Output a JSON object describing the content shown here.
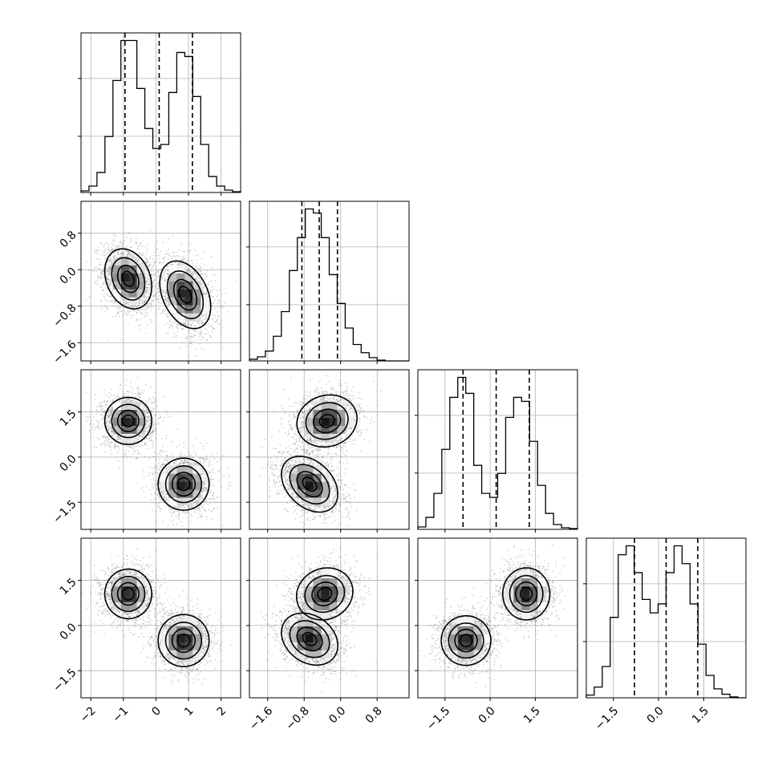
{
  "chart_data": {
    "type": "corner",
    "parameters": 4,
    "colors": {
      "line": "#000000",
      "points": "#808080",
      "grid": "#b0b0b0",
      "background": "#ffffff"
    },
    "grid": true,
    "axes": [
      {
        "range": [
          -2.3,
          2.6
        ],
        "ticks": [
          -2,
          -1,
          0,
          1,
          2
        ],
        "tick_labels": [
          "−2",
          "−1",
          "0",
          "1",
          "2"
        ]
      },
      {
        "range": [
          -2.0,
          1.5
        ],
        "ticks": [
          -1.6,
          -0.8,
          0.0,
          0.8
        ],
        "tick_labels": [
          "−1.6",
          "−0.8",
          "0.0",
          "0.8"
        ]
      },
      {
        "range": [
          -2.4,
          2.9
        ],
        "ticks": [
          -1.5,
          0.0,
          1.5
        ],
        "tick_labels": [
          "−1.5",
          "0.0",
          "1.5"
        ]
      },
      {
        "range": [
          -2.4,
          2.9
        ],
        "ticks": [
          -1.5,
          0.0,
          1.5
        ],
        "tick_labels": [
          "−1.5",
          "0.0",
          "1.5"
        ]
      }
    ],
    "histograms": [
      {
        "param": 0,
        "bin_edges": [
          -2.3,
          -2.055,
          -1.81,
          -1.565,
          -1.32,
          -1.075,
          -0.83,
          -0.585,
          -0.34,
          -0.095,
          0.15,
          0.395,
          0.64,
          0.885,
          1.13,
          1.375,
          1.62,
          1.865,
          2.11,
          2.355,
          2.6
        ],
        "counts": [
          2,
          8,
          25,
          70,
          140,
          190,
          190,
          130,
          80,
          55,
          60,
          125,
          175,
          170,
          120,
          60,
          20,
          8,
          3,
          1
        ],
        "quantiles": [
          -0.95,
          0.1,
          1.12
        ]
      },
      {
        "param": 1,
        "bin_edges": [
          -2.0,
          -1.825,
          -1.65,
          -1.475,
          -1.3,
          -1.125,
          -0.95,
          -0.775,
          -0.6,
          -0.425,
          -0.25,
          -0.075,
          0.1,
          0.275,
          0.45,
          0.625,
          0.8,
          0.975,
          1.15,
          1.325,
          1.5
        ],
        "counts": [
          2,
          5,
          12,
          30,
          60,
          110,
          150,
          185,
          180,
          150,
          105,
          70,
          40,
          20,
          10,
          4,
          1,
          0,
          0,
          0
        ],
        "quantiles": [
          -0.85,
          -0.47,
          -0.07
        ]
      },
      {
        "param": 2,
        "bin_edges": [
          -2.4,
          -2.135,
          -1.87,
          -1.605,
          -1.34,
          -1.075,
          -0.81,
          -0.545,
          -0.28,
          -0.015,
          0.25,
          0.515,
          0.78,
          1.045,
          1.31,
          1.575,
          1.84,
          2.105,
          2.37,
          2.635,
          2.9
        ],
        "counts": [
          3,
          15,
          45,
          100,
          165,
          190,
          170,
          80,
          45,
          40,
          70,
          140,
          165,
          160,
          110,
          55,
          20,
          6,
          2,
          1
        ],
        "quantiles": [
          -0.9,
          0.2,
          1.3
        ]
      },
      {
        "param": 3,
        "bin_edges": [
          -2.4,
          -2.135,
          -1.87,
          -1.605,
          -1.34,
          -1.075,
          -0.81,
          -0.545,
          -0.28,
          -0.015,
          0.25,
          0.515,
          0.78,
          1.045,
          1.31,
          1.575,
          1.84,
          2.105,
          2.37,
          2.635,
          2.9
        ],
        "counts": [
          3,
          12,
          35,
          90,
          160,
          170,
          140,
          110,
          95,
          105,
          140,
          170,
          150,
          105,
          60,
          25,
          10,
          4,
          1,
          0
        ],
        "quantiles": [
          -0.8,
          0.25,
          1.3
        ]
      }
    ],
    "pairs": [
      {
        "x": 0,
        "y": 1,
        "modes": [
          {
            "cx": -0.85,
            "cy": -0.2,
            "sx": 0.35,
            "sy": 0.32,
            "rho": -0.25
          },
          {
            "cx": 0.9,
            "cy": -0.55,
            "sx": 0.38,
            "sy": 0.36,
            "rho": -0.35
          }
        ]
      },
      {
        "x": 0,
        "y": 2,
        "modes": [
          {
            "cx": -0.85,
            "cy": 1.2,
            "sx": 0.35,
            "sy": 0.38,
            "rho": 0.0
          },
          {
            "cx": 0.85,
            "cy": -0.9,
            "sx": 0.38,
            "sy": 0.42,
            "rho": 0.0
          }
        ]
      },
      {
        "x": 1,
        "y": 2,
        "modes": [
          {
            "cx": -0.3,
            "cy": 1.2,
            "sx": 0.32,
            "sy": 0.42,
            "rho": 0.1
          },
          {
            "cx": -0.68,
            "cy": -0.9,
            "sx": 0.3,
            "sy": 0.45,
            "rho": -0.35
          }
        ]
      },
      {
        "x": 0,
        "y": 3,
        "modes": [
          {
            "cx": -0.85,
            "cy": 1.05,
            "sx": 0.35,
            "sy": 0.4,
            "rho": 0.0
          },
          {
            "cx": 0.85,
            "cy": -0.5,
            "sx": 0.38,
            "sy": 0.42,
            "rho": 0.0
          }
        ]
      },
      {
        "x": 1,
        "y": 3,
        "modes": [
          {
            "cx": -0.35,
            "cy": 1.05,
            "sx": 0.3,
            "sy": 0.42,
            "rho": 0.1
          },
          {
            "cx": -0.68,
            "cy": -0.45,
            "sx": 0.3,
            "sy": 0.42,
            "rho": -0.25
          }
        ]
      },
      {
        "x": 2,
        "y": 3,
        "modes": [
          {
            "cx": -0.8,
            "cy": -0.5,
            "sx": 0.4,
            "sy": 0.4,
            "rho": 0.0
          },
          {
            "cx": 1.2,
            "cy": 1.05,
            "sx": 0.38,
            "sy": 0.42,
            "rho": 0.0
          }
        ]
      }
    ]
  }
}
